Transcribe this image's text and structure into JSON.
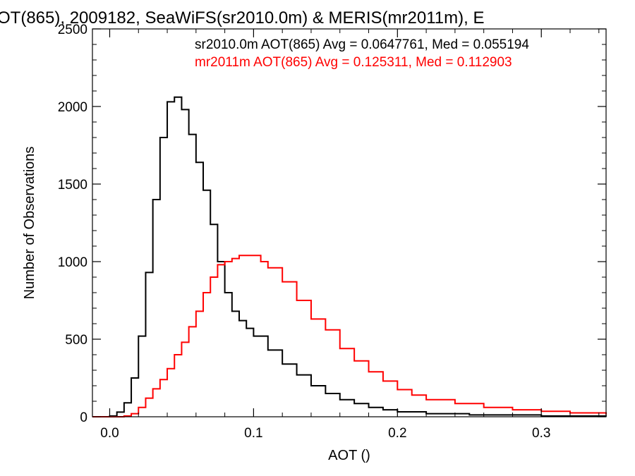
{
  "chart_data": {
    "type": "line",
    "title": "OT(865), 2009182, SeaWiFS(sr2010.0m) & MERIS(mr2011m), E",
    "xlabel": "AOT ()",
    "ylabel": "Number of Observations",
    "xlim": [
      -0.012,
      0.345
    ],
    "ylim": [
      0,
      2500
    ],
    "xticks": [
      0.0,
      0.1,
      0.2,
      0.3
    ],
    "xtick_labels": [
      "0.0",
      "0.1",
      "0.2",
      "0.3"
    ],
    "yticks": [
      0,
      500,
      1000,
      1500,
      2000,
      2500
    ],
    "ytick_labels": [
      "0",
      "500",
      "1000",
      "1500",
      "2000",
      "2500"
    ],
    "grid": false,
    "legend": [
      {
        "text": "sr2010.0m AOT(865) Avg = 0.0647761, Med = 0.055194",
        "color": "#000000"
      },
      {
        "text": "mr2011m AOT(865) Avg = 0.125311, Med = 0.112903",
        "color": "#ff0000"
      }
    ],
    "series": [
      {
        "color": "#000000",
        "style": "step",
        "points": [
          [
            -0.012,
            0
          ],
          [
            0.0,
            5
          ],
          [
            0.005,
            30
          ],
          [
            0.01,
            90
          ],
          [
            0.015,
            250
          ],
          [
            0.02,
            520
          ],
          [
            0.025,
            930
          ],
          [
            0.03,
            1400
          ],
          [
            0.035,
            1800
          ],
          [
            0.04,
            2030
          ],
          [
            0.045,
            2060
          ],
          [
            0.05,
            1980
          ],
          [
            0.055,
            1820
          ],
          [
            0.06,
            1640
          ],
          [
            0.065,
            1460
          ],
          [
            0.07,
            1240
          ],
          [
            0.075,
            1000
          ],
          [
            0.08,
            800
          ],
          [
            0.085,
            680
          ],
          [
            0.09,
            620
          ],
          [
            0.095,
            570
          ],
          [
            0.1,
            520
          ],
          [
            0.11,
            430
          ],
          [
            0.12,
            340
          ],
          [
            0.13,
            270
          ],
          [
            0.14,
            200
          ],
          [
            0.15,
            150
          ],
          [
            0.16,
            110
          ],
          [
            0.17,
            85
          ],
          [
            0.18,
            60
          ],
          [
            0.19,
            45
          ],
          [
            0.2,
            32
          ],
          [
            0.22,
            20
          ],
          [
            0.25,
            12
          ],
          [
            0.3,
            5
          ],
          [
            0.345,
            2
          ]
        ]
      },
      {
        "color": "#ff0000",
        "style": "step",
        "points": [
          [
            -0.012,
            0
          ],
          [
            0.01,
            5
          ],
          [
            0.015,
            20
          ],
          [
            0.02,
            60
          ],
          [
            0.025,
            120
          ],
          [
            0.03,
            180
          ],
          [
            0.035,
            240
          ],
          [
            0.04,
            310
          ],
          [
            0.045,
            400
          ],
          [
            0.05,
            480
          ],
          [
            0.055,
            580
          ],
          [
            0.06,
            680
          ],
          [
            0.065,
            800
          ],
          [
            0.07,
            900
          ],
          [
            0.075,
            980
          ],
          [
            0.08,
            1000
          ],
          [
            0.085,
            1020
          ],
          [
            0.09,
            1040
          ],
          [
            0.095,
            1040
          ],
          [
            0.1,
            1040
          ],
          [
            0.105,
            1000
          ],
          [
            0.11,
            960
          ],
          [
            0.12,
            870
          ],
          [
            0.13,
            750
          ],
          [
            0.14,
            630
          ],
          [
            0.15,
            560
          ],
          [
            0.16,
            440
          ],
          [
            0.17,
            360
          ],
          [
            0.18,
            290
          ],
          [
            0.19,
            230
          ],
          [
            0.2,
            175
          ],
          [
            0.21,
            140
          ],
          [
            0.22,
            110
          ],
          [
            0.24,
            85
          ],
          [
            0.26,
            60
          ],
          [
            0.28,
            45
          ],
          [
            0.3,
            35
          ],
          [
            0.32,
            25
          ],
          [
            0.345,
            15
          ]
        ]
      }
    ]
  }
}
